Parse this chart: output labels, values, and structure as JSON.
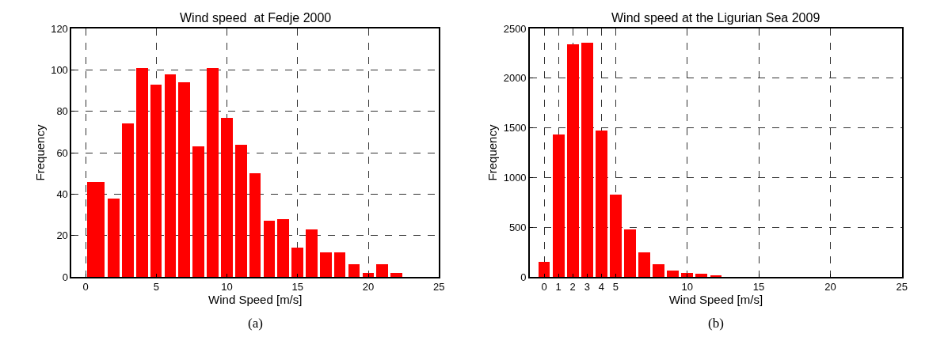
{
  "chart_data": [
    {
      "type": "histogram",
      "title": "Wind speed  at Fedje 2000",
      "xlabel": "Wind Speed [m/s]",
      "ylabel": "Frequency",
      "annotations": [
        "(a)"
      ],
      "bins": [
        0,
        1.5,
        2.5,
        3.5,
        4.5,
        5.5,
        6.5,
        7.5,
        8.5,
        9.5,
        10.5,
        11.5,
        12.5,
        13.5,
        14.5,
        15.5,
        16.5,
        17.5,
        18.5,
        19.5,
        20.5,
        21.5,
        22.5
      ],
      "values": [
        46,
        38,
        74,
        101,
        93,
        98,
        94,
        63,
        101,
        77,
        64,
        50,
        27,
        28,
        14,
        23,
        12,
        12,
        6,
        2,
        6,
        2
      ],
      "color": "#ff0000",
      "xlim": [
        -1,
        25
      ],
      "xticks": [
        0,
        5,
        10,
        15,
        20,
        25
      ],
      "ylim": [
        0,
        120
      ],
      "yticks": [
        0,
        20,
        40,
        60,
        80,
        100,
        120
      ],
      "grid": true
    },
    {
      "type": "histogram",
      "title": "Wind speed at the Ligurian Sea 2009",
      "xlabel": "Wind Speed [m/s]",
      "ylabel": "Frequency",
      "annotations": [
        "(b)"
      ],
      "bins": [
        -0.5,
        0.5,
        1.5,
        2.5,
        3.5,
        4.5,
        5.5,
        6.5,
        7.5,
        8.5,
        9.5,
        10.5,
        11.5,
        12.5
      ],
      "values": [
        150,
        1430,
        2340,
        2355,
        1475,
        830,
        480,
        250,
        130,
        60,
        40,
        30,
        10
      ],
      "color": "#ff0000",
      "xlim": [
        -1,
        25
      ],
      "xticks": [
        0,
        1,
        2,
        3,
        4,
        5,
        10,
        15,
        20,
        25
      ],
      "ylim": [
        0,
        2500
      ],
      "yticks": [
        0,
        500,
        1000,
        1500,
        2000,
        2500
      ],
      "grid": true
    }
  ]
}
